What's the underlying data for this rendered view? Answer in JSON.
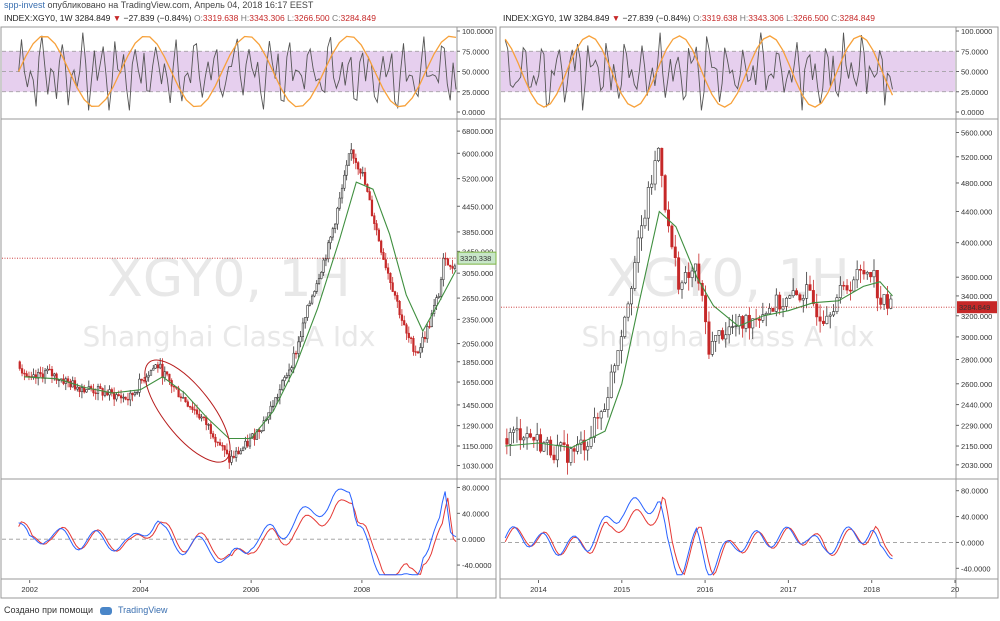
{
  "header": {
    "publisher": "spp-invest",
    "published_text": "опубликовано на TradingView.com, Апрель 04, 2018 16:17 EEST"
  },
  "footer": {
    "created_with": "Создано при помощи",
    "brand": "TradingView"
  },
  "colors": {
    "rsi_band": "#e6cfee",
    "rsi_line": "#555555",
    "stoch_line": "#f7a13a",
    "candle_up": "#333333",
    "candle_down": "#c62828",
    "ma": "#3f8f3f",
    "osc_blue": "#2962ff",
    "osc_red": "#e53935",
    "price_line": "#c62828",
    "ellipse": "#b71c1c"
  },
  "icons": [
    "tradingview-logo-icon",
    "down-triangle-icon"
  ],
  "chart_data": [
    {
      "type": "candlestick",
      "symbol_line": {
        "symbol": "INDEX:XGY0, 1W",
        "last": "3284.849",
        "change": "−27.839 (−0.84%)",
        "o_label": "O:",
        "o": "3319.638",
        "h_label": "H:",
        "h": "3343.306",
        "l_label": "L:",
        "l": "3266.500",
        "c_label": "C:",
        "c": "3284.849"
      },
      "watermark": {
        "line1": "XGY0, 1H",
        "line2": "Shanghai Class A Idx"
      },
      "x_ticks": [
        "2002",
        "2004",
        "2006",
        "2008"
      ],
      "x_range": [
        2001.5,
        2009.7
      ],
      "price_scale": "log",
      "price_ticks": [
        "6800.000",
        "6000.000",
        "5200.000",
        "4450.000",
        "3850.000",
        "3450.000",
        "3050.000",
        "2650.000",
        "2350.000",
        "2050.000",
        "1850.000",
        "1650.000",
        "1450.000",
        "1290.000",
        "1150.000",
        "1030.000"
      ],
      "price_range": [
        960,
        7200
      ],
      "marker_label": "3320.338",
      "marker_value": 3320.338,
      "price_path": [
        [
          2001.8,
          1850
        ],
        [
          2002.0,
          1650
        ],
        [
          2002.3,
          1750
        ],
        [
          2002.8,
          1620
        ],
        [
          2003.3,
          1560
        ],
        [
          2003.8,
          1500
        ],
        [
          2004.1,
          1720
        ],
        [
          2004.3,
          1820
        ],
        [
          2004.6,
          1600
        ],
        [
          2005.0,
          1400
        ],
        [
          2005.3,
          1250
        ],
        [
          2005.6,
          1060
        ],
        [
          2005.9,
          1150
        ],
        [
          2006.2,
          1300
        ],
        [
          2006.5,
          1550
        ],
        [
          2006.8,
          1950
        ],
        [
          2007.1,
          2700
        ],
        [
          2007.4,
          3550
        ],
        [
          2007.6,
          4600
        ],
        [
          2007.8,
          6100
        ],
        [
          2008.0,
          5400
        ],
        [
          2008.2,
          4200
        ],
        [
          2008.4,
          3300
        ],
        [
          2008.6,
          2700
        ],
        [
          2008.8,
          2150
        ],
        [
          2009.0,
          1950
        ],
        [
          2009.2,
          2250
        ],
        [
          2009.4,
          2750
        ],
        [
          2009.5,
          3450
        ],
        [
          2009.6,
          3100
        ],
        [
          2009.7,
          3300
        ]
      ],
      "ma_path": [
        [
          2001.9,
          1700
        ],
        [
          2002.5,
          1680
        ],
        [
          2003.0,
          1600
        ],
        [
          2003.5,
          1550
        ],
        [
          2004.0,
          1580
        ],
        [
          2004.4,
          1700
        ],
        [
          2004.8,
          1550
        ],
        [
          2005.2,
          1350
        ],
        [
          2005.6,
          1200
        ],
        [
          2006.0,
          1200
        ],
        [
          2006.4,
          1400
        ],
        [
          2006.8,
          1800
        ],
        [
          2007.2,
          2500
        ],
        [
          2007.6,
          3700
        ],
        [
          2007.9,
          5100
        ],
        [
          2008.2,
          4900
        ],
        [
          2008.5,
          3800
        ],
        [
          2008.8,
          2700
        ],
        [
          2009.1,
          2200
        ],
        [
          2009.4,
          2600
        ],
        [
          2009.7,
          3100
        ]
      ],
      "rsi_ticks": [
        "100.0000",
        "75.0000",
        "50.0000",
        "25.0000",
        "0.0000"
      ],
      "rsi_band": [
        25,
        75
      ],
      "osc_ticks": [
        "80.0000",
        "40.0000",
        "0.0000",
        "-40.0000"
      ],
      "osc_range": [
        -60,
        90
      ]
    },
    {
      "type": "candlestick",
      "symbol_line": {
        "symbol": "INDEX:XGY0, 1W",
        "last": "3284.849",
        "change": "−27.839 (−0.84%)",
        "o_label": "O:",
        "o": "3319.638",
        "h_label": "H:",
        "h": "3343.306",
        "l_label": "L:",
        "l": "3266.500",
        "c_label": "C:",
        "c": "3284.849"
      },
      "watermark": {
        "line1": "XGY0, 1H",
        "line2": "Shanghai Class A Idx"
      },
      "x_ticks": [
        "2014",
        "2015",
        "2016",
        "2017",
        "2018",
        "20"
      ],
      "x_range": [
        2013.55,
        2019.0
      ],
      "price_scale": "log",
      "price_ticks": [
        "5600.000",
        "5200.000",
        "4800.000",
        "4400.000",
        "4000.000",
        "3600.000",
        "3400.000",
        "3200.000",
        "3000.000",
        "2800.000",
        "2600.000",
        "2440.000",
        "2290.000",
        "2150.000",
        "2030.000"
      ],
      "price_range": [
        1950,
        5800
      ],
      "marker_label": "3284.849",
      "marker_value": 3284.849,
      "price_path": [
        [
          2013.6,
          2200
        ],
        [
          2013.8,
          2250
        ],
        [
          2014.0,
          2180
        ],
        [
          2014.2,
          2120
        ],
        [
          2014.4,
          2100
        ],
        [
          2014.6,
          2200
        ],
        [
          2014.8,
          2450
        ],
        [
          2014.95,
          2900
        ],
        [
          2015.1,
          3500
        ],
        [
          2015.3,
          4500
        ],
        [
          2015.45,
          5400
        ],
        [
          2015.55,
          4200
        ],
        [
          2015.7,
          3500
        ],
        [
          2015.9,
          3700
        ],
        [
          2016.05,
          2900
        ],
        [
          2016.2,
          3050
        ],
        [
          2016.4,
          3100
        ],
        [
          2016.6,
          3200
        ],
        [
          2016.8,
          3300
        ],
        [
          2017.0,
          3350
        ],
        [
          2017.2,
          3450
        ],
        [
          2017.4,
          3200
        ],
        [
          2017.6,
          3400
        ],
        [
          2017.8,
          3600
        ],
        [
          2018.0,
          3720
        ],
        [
          2018.1,
          3350
        ],
        [
          2018.25,
          3284
        ]
      ],
      "ma_path": [
        [
          2013.6,
          2150
        ],
        [
          2014.0,
          2170
        ],
        [
          2014.4,
          2140
        ],
        [
          2014.8,
          2250
        ],
        [
          2015.0,
          2600
        ],
        [
          2015.2,
          3300
        ],
        [
          2015.45,
          4400
        ],
        [
          2015.65,
          4200
        ],
        [
          2015.9,
          3600
        ],
        [
          2016.1,
          3300
        ],
        [
          2016.4,
          3100
        ],
        [
          2016.7,
          3200
        ],
        [
          2017.0,
          3250
        ],
        [
          2017.3,
          3330
        ],
        [
          2017.6,
          3350
        ],
        [
          2017.9,
          3500
        ],
        [
          2018.1,
          3550
        ],
        [
          2018.25,
          3400
        ]
      ],
      "rsi_ticks": [
        "100.0000",
        "75.0000",
        "50.0000",
        "25.0000",
        "0.0000"
      ],
      "rsi_band": [
        25,
        75
      ],
      "osc_ticks": [
        "80.0000",
        "40.0000",
        "0.0000",
        "-40.0000"
      ],
      "osc_range": [
        -55,
        95
      ]
    }
  ]
}
